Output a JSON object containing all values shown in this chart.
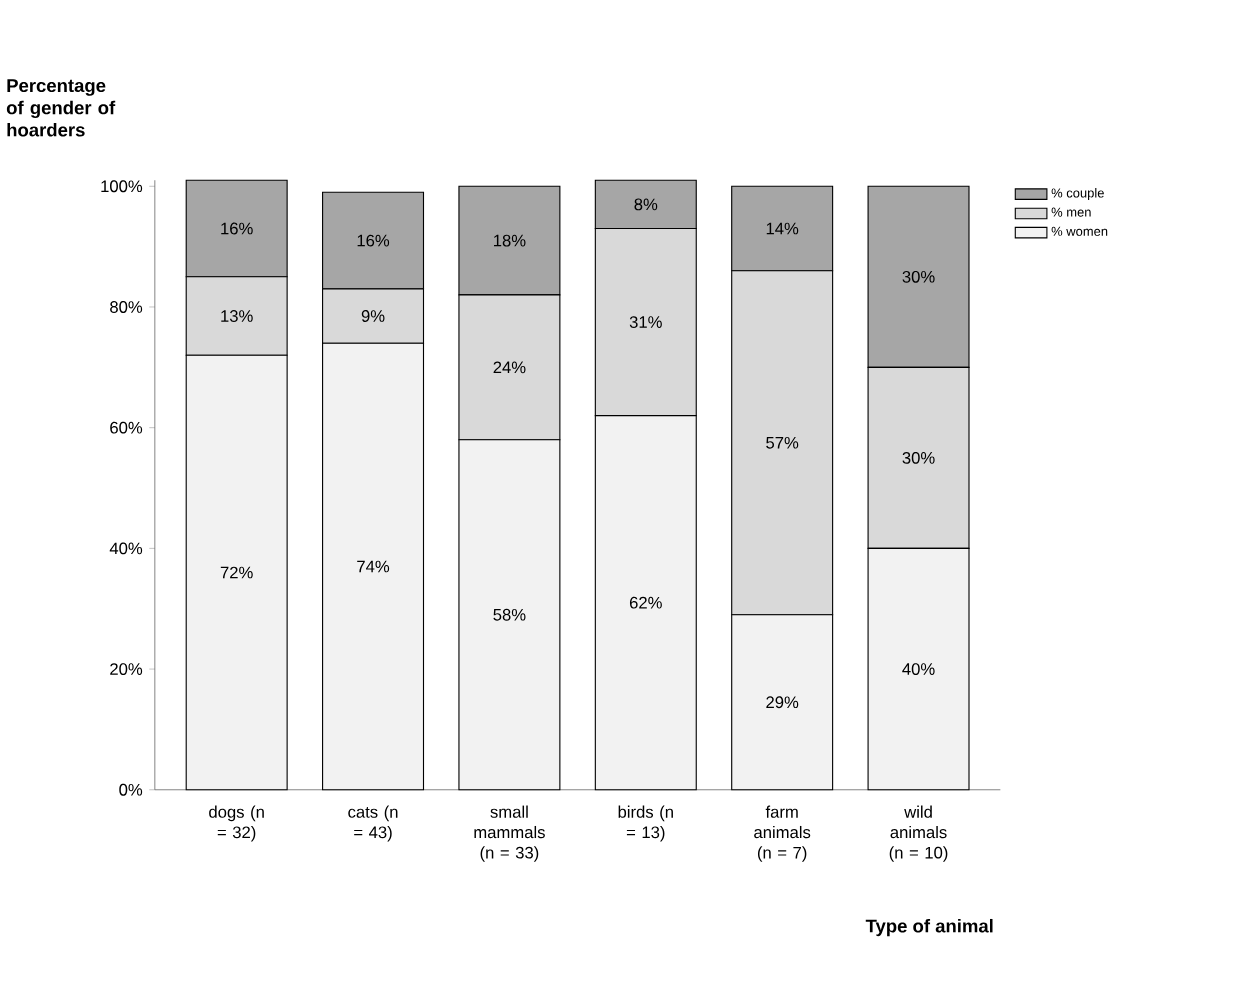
{
  "chart_data": {
    "type": "bar",
    "stacked": true,
    "ylabel": "Percentage of gender of hoarders",
    "xlabel": "Type of animal",
    "categories": [
      "dogs (n = 32)",
      "cats (n = 43)",
      "small mammals (n = 33)",
      "birds (n = 13)",
      "farm animals (n = 7)",
      "wild animals (n = 10)"
    ],
    "series": [
      {
        "name": "% women",
        "color": "#f2f2f2",
        "values": [
          72,
          74,
          58,
          62,
          29,
          40
        ],
        "value_labels": [
          "72%",
          "74%",
          "58%",
          "62%",
          "29%",
          "40%"
        ]
      },
      {
        "name": "% men",
        "color": "#d9d9d9",
        "values": [
          13,
          9,
          24,
          31,
          57,
          30
        ],
        "value_labels": [
          "13%",
          "9%",
          "24%",
          "31%",
          "57%",
          "30%"
        ]
      },
      {
        "name": "% couple",
        "color": "#a6a6a6",
        "values": [
          16,
          16,
          18,
          8,
          14,
          30
        ],
        "value_labels": [
          "16%",
          "16%",
          "18%",
          "8%",
          "14%",
          "30%"
        ]
      }
    ],
    "ylim": [
      0,
      101
    ],
    "yticks": [
      {
        "value": 0,
        "label": "0%"
      },
      {
        "value": 20,
        "label": "20%"
      },
      {
        "value": 40,
        "label": "40%"
      },
      {
        "value": 60,
        "label": "60%"
      },
      {
        "value": 80,
        "label": "80%"
      },
      {
        "value": 100,
        "label": "100%"
      }
    ],
    "legend": "top right"
  }
}
